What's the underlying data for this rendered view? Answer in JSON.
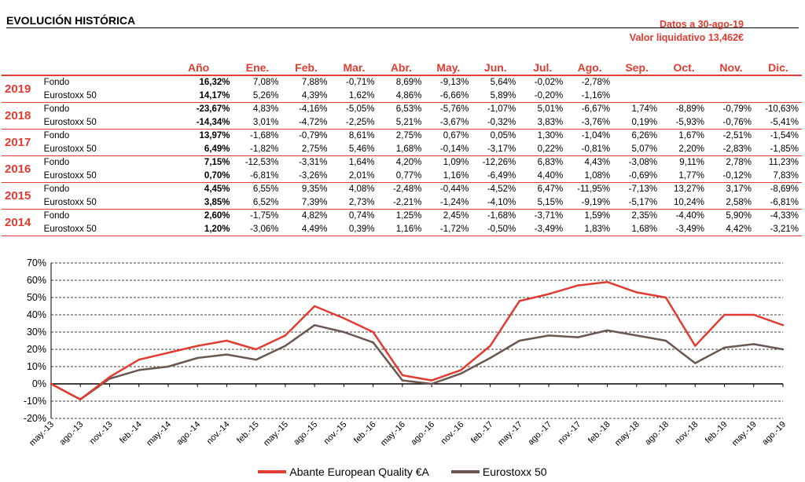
{
  "header": {
    "title": "EVOLUCIÓN HISTÓRICA",
    "date_note": "Datos a 30-ago-19",
    "nav_note": "Valor liquidativo 13,462€"
  },
  "table": {
    "columns": [
      "",
      "",
      "Año",
      "Ene.",
      "Feb.",
      "Mar.",
      "Abr.",
      "May.",
      "Jun.",
      "Jul.",
      "Ago.",
      "Sep.",
      "Oct.",
      "Nov.",
      "Dic."
    ],
    "years": [
      {
        "year": "2019",
        "rows": [
          {
            "label": "Fondo",
            "values": [
              "16,32%",
              "7,08%",
              "7,88%",
              "-0,71%",
              "8,69%",
              "-9,13%",
              "5,64%",
              "-0,02%",
              "-2,78%",
              "",
              "",
              "",
              ""
            ]
          },
          {
            "label": "Eurostoxx 50",
            "values": [
              "14,17%",
              "5,26%",
              "4,39%",
              "1,62%",
              "4,86%",
              "-6,66%",
              "5,89%",
              "-0,20%",
              "-1,16%",
              "",
              "",
              "",
              ""
            ]
          }
        ]
      },
      {
        "year": "2018",
        "rows": [
          {
            "label": "Fondo",
            "values": [
              "-23,67%",
              "4,83%",
              "-4,16%",
              "-5,05%",
              "6,53%",
              "-5,76%",
              "-1,07%",
              "5,01%",
              "-6,67%",
              "1,74%",
              "-8,89%",
              "-0,79%",
              "-10,63%"
            ]
          },
          {
            "label": "Eurostoxx 50",
            "values": [
              "-14,34%",
              "3,01%",
              "-4,72%",
              "-2,25%",
              "5,21%",
              "-3,67%",
              "-0,32%",
              "3,83%",
              "-3,76%",
              "0,19%",
              "-5,93%",
              "-0,76%",
              "-5,41%"
            ]
          }
        ]
      },
      {
        "year": "2017",
        "rows": [
          {
            "label": "Fondo",
            "values": [
              "13,97%",
              "-1,68%",
              "-0,79%",
              "8,61%",
              "2,75%",
              "0,67%",
              "0,05%",
              "1,30%",
              "-1,04%",
              "6,26%",
              "1,67%",
              "-2,51%",
              "-1,54%"
            ]
          },
          {
            "label": "Eurostoxx 50",
            "values": [
              "6,49%",
              "-1,82%",
              "2,75%",
              "5,46%",
              "1,68%",
              "-0,14%",
              "-3,17%",
              "0,22%",
              "-0,81%",
              "5,07%",
              "2,20%",
              "-2,83%",
              "-1,85%"
            ]
          }
        ]
      },
      {
        "year": "2016",
        "rows": [
          {
            "label": "Fondo",
            "values": [
              "7,15%",
              "-12,53%",
              "-3,31%",
              "1,64%",
              "4,20%",
              "1,09%",
              "-12,26%",
              "6,83%",
              "4,43%",
              "-3,08%",
              "9,11%",
              "2,78%",
              "11,23%"
            ]
          },
          {
            "label": "Eurostoxx 50",
            "values": [
              "0,70%",
              "-6,81%",
              "-3,26%",
              "2,01%",
              "0,77%",
              "1,16%",
              "-6,49%",
              "4,40%",
              "1,08%",
              "-0,69%",
              "1,77%",
              "-0,12%",
              "7,83%"
            ]
          }
        ]
      },
      {
        "year": "2015",
        "rows": [
          {
            "label": "Fondo",
            "values": [
              "4,45%",
              "6,55%",
              "9,35%",
              "4,08%",
              "-2,48%",
              "-0,44%",
              "-4,52%",
              "6,47%",
              "-11,95%",
              "-7,13%",
              "13,27%",
              "3,17%",
              "-8,69%"
            ]
          },
          {
            "label": "Eurostoxx 50",
            "values": [
              "3,85%",
              "6,52%",
              "7,39%",
              "2,73%",
              "-2,21%",
              "-1,24%",
              "-4,10%",
              "5,15%",
              "-9,19%",
              "-5,17%",
              "10,24%",
              "2,58%",
              "-6,81%"
            ]
          }
        ]
      },
      {
        "year": "2014",
        "rows": [
          {
            "label": "Fondo",
            "values": [
              "2,60%",
              "-1,75%",
              "4,82%",
              "0,74%",
              "1,25%",
              "2,45%",
              "-1,68%",
              "-3,71%",
              "1,59%",
              "2,35%",
              "-4,40%",
              "5,90%",
              "-4,33%"
            ]
          },
          {
            "label": "Eurostoxx 50",
            "values": [
              "1,20%",
              "-3,06%",
              "4,49%",
              "0,39%",
              "1,16%",
              "-1,72%",
              "-0,50%",
              "-3,49%",
              "1,83%",
              "1,68%",
              "-3,49%",
              "4,42%",
              "-3,21%"
            ]
          }
        ]
      }
    ]
  },
  "chart_data": {
    "type": "line",
    "title": "",
    "xlabel": "",
    "ylabel": "",
    "ylim": [
      -20,
      70
    ],
    "yticks": [
      "-20%",
      "-10%",
      "0%",
      "10%",
      "20%",
      "30%",
      "40%",
      "50%",
      "60%",
      "70%"
    ],
    "x": [
      "may.-13",
      "ago.-13",
      "nov.-13",
      "feb.-14",
      "may.-14",
      "ago.-14",
      "nov.-14",
      "feb.-15",
      "may.-15",
      "ago.-15",
      "nov.-15",
      "feb.-16",
      "may.-16",
      "ago.-16",
      "nov.-16",
      "feb.-17",
      "may.-17",
      "ago.-17",
      "nov.-17",
      "feb.-18",
      "may.-18",
      "ago.-18",
      "nov.-18",
      "feb.-19",
      "may.-19",
      "ago.-19"
    ],
    "grid": true,
    "legend_position": "bottom",
    "series": [
      {
        "name": "Abante European Quality €A",
        "color": "#e03c31",
        "values": [
          0,
          -9,
          4,
          14,
          18,
          22,
          25,
          20,
          28,
          45,
          38,
          30,
          5,
          2,
          8,
          22,
          48,
          52,
          57,
          59,
          53,
          50,
          22,
          40,
          40,
          34
        ]
      },
      {
        "name": "Eurostoxx 50",
        "color": "#6b5750",
        "values": [
          0,
          -9,
          3,
          8,
          10,
          15,
          17,
          14,
          22,
          34,
          30,
          24,
          2,
          0,
          6,
          15,
          25,
          28,
          27,
          31,
          28,
          25,
          12,
          21,
          23,
          20
        ]
      }
    ]
  }
}
